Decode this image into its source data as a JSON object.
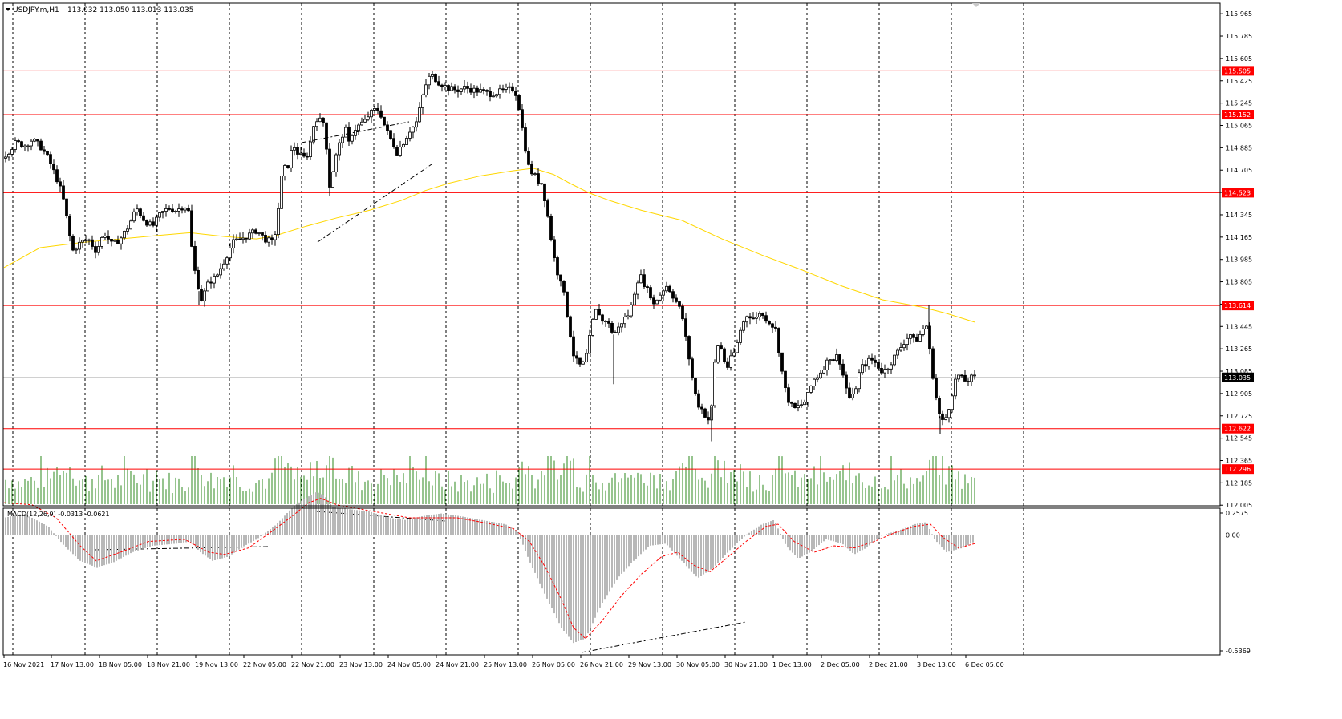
{
  "header": {
    "symbol": "USDJPY.m,H1",
    "ohlc": "113.032 113.050 113.013 113.035"
  },
  "colors": {
    "background": "#ffffff",
    "grid": "#000000",
    "candle": "#000000",
    "level_line": "#ff0000",
    "level_label_bg": "#ff0000",
    "current_price_line": "#c0c0c0",
    "ma_line": "#ffd700",
    "volume": "#2d8a1e",
    "macd_hist": "#b8b8b8",
    "macd_signal": "#ff0000"
  },
  "main_axis": {
    "ticks": [
      "115.965",
      "115.785",
      "115.605",
      "115.425",
      "115.245",
      "115.065",
      "114.885",
      "114.705",
      "114.525",
      "114.345",
      "114.165",
      "113.985",
      "113.805",
      "113.625",
      "113.445",
      "113.265",
      "113.085",
      "112.905",
      "112.725",
      "112.545",
      "112.365",
      "112.185",
      "112.005"
    ],
    "current_price": "113.035"
  },
  "levels": [
    "115.505",
    "115.152",
    "114.523",
    "113.614",
    "112.622",
    "112.296"
  ],
  "macd": {
    "label": "MACD(12,26,9) -0.0313 -0.0621",
    "ticks": [
      "0.2575",
      "0.00",
      "-0.5369"
    ]
  },
  "time_axis": [
    "16 Nov 2021",
    "17 Nov 13:00",
    "18 Nov 05:00",
    "18 Nov 21:00",
    "19 Nov 13:00",
    "22 Nov 05:00",
    "22 Nov 21:00",
    "23 Nov 13:00",
    "24 Nov 05:00",
    "24 Nov 21:00",
    "25 Nov 13:00",
    "26 Nov 05:00",
    "26 Nov 21:00",
    "29 Nov 13:00",
    "30 Nov 05:00",
    "30 Nov 21:00",
    "1 Dec 13:00",
    "2 Dec 05:00",
    "2 Dec 21:00",
    "3 Dec 13:00",
    "6 Dec 05:00"
  ],
  "chart_data": {
    "type": "candlestick",
    "symbol": "USDJPY.m",
    "timeframe": "H1",
    "y_range": [
      112.0,
      116.05
    ],
    "macd_range": [
      -0.5369,
      0.2575
    ],
    "price_path": [
      [
        0,
        114.78
      ],
      [
        10,
        114.85
      ],
      [
        20,
        114.93
      ],
      [
        30,
        114.9
      ],
      [
        40,
        114.95
      ],
      [
        50,
        114.9
      ],
      [
        60,
        114.8
      ],
      [
        70,
        114.65
      ],
      [
        78,
        114.5
      ],
      [
        85,
        114.25
      ],
      [
        90,
        114.05
      ],
      [
        100,
        114.12
      ],
      [
        110,
        114.15
      ],
      [
        120,
        114.05
      ],
      [
        130,
        114.2
      ],
      [
        140,
        114.1
      ],
      [
        150,
        114.15
      ],
      [
        160,
        114.25
      ],
      [
        170,
        114.4
      ],
      [
        180,
        114.3
      ],
      [
        190,
        114.25
      ],
      [
        200,
        114.35
      ],
      [
        210,
        114.4
      ],
      [
        220,
        114.38
      ],
      [
        230,
        114.42
      ],
      [
        237,
        114.35
      ],
      [
        240,
        113.95
      ],
      [
        245,
        113.85
      ],
      [
        250,
        113.65
      ],
      [
        255,
        113.72
      ],
      [
        260,
        113.8
      ],
      [
        270,
        113.85
      ],
      [
        280,
        113.98
      ],
      [
        290,
        114.12
      ],
      [
        300,
        114.15
      ],
      [
        310,
        114.18
      ],
      [
        320,
        114.22
      ],
      [
        330,
        114.15
      ],
      [
        340,
        114.12
      ],
      [
        345,
        114.25
      ],
      [
        350,
        114.62
      ],
      [
        355,
        114.72
      ],
      [
        360,
        114.75
      ],
      [
        365,
        114.92
      ],
      [
        370,
        114.85
      ],
      [
        375,
        114.82
      ],
      [
        380,
        114.8
      ],
      [
        385,
        114.85
      ],
      [
        390,
        115.05
      ],
      [
        395,
        115.12
      ],
      [
        400,
        115.1
      ],
      [
        405,
        115.08
      ],
      [
        408,
        114.8
      ],
      [
        410,
        114.55
      ],
      [
        415,
        114.7
      ],
      [
        420,
        114.85
      ],
      [
        425,
        114.95
      ],
      [
        430,
        115.05
      ],
      [
        435,
        114.92
      ],
      [
        440,
        115.02
      ],
      [
        445,
        115.05
      ],
      [
        450,
        115.08
      ],
      [
        455,
        115.1
      ],
      [
        460,
        115.15
      ],
      [
        465,
        115.18
      ],
      [
        470,
        115.2
      ],
      [
        475,
        115.15
      ],
      [
        480,
        115.05
      ],
      [
        485,
        114.98
      ],
      [
        490,
        114.92
      ],
      [
        495,
        114.85
      ],
      [
        500,
        114.9
      ],
      [
        505,
        114.95
      ],
      [
        510,
        115.02
      ],
      [
        515,
        115.05
      ],
      [
        520,
        115.1
      ],
      [
        525,
        115.25
      ],
      [
        530,
        115.38
      ],
      [
        535,
        115.45
      ],
      [
        540,
        115.47
      ],
      [
        545,
        115.42
      ],
      [
        550,
        115.4
      ],
      [
        555,
        115.38
      ],
      [
        560,
        115.36
      ],
      [
        570,
        115.35
      ],
      [
        580,
        115.37
      ],
      [
        590,
        115.35
      ],
      [
        600,
        115.34
      ],
      [
        610,
        115.32
      ],
      [
        620,
        115.33
      ],
      [
        630,
        115.35
      ],
      [
        640,
        115.36
      ],
      [
        645,
        115.3
      ],
      [
        650,
        115.08
      ],
      [
        655,
        114.88
      ],
      [
        660,
        114.7
      ],
      [
        665,
        114.68
      ],
      [
        670,
        114.62
      ],
      [
        675,
        114.6
      ],
      [
        680,
        114.45
      ],
      [
        685,
        114.25
      ],
      [
        690,
        114.02
      ],
      [
        695,
        113.88
      ],
      [
        700,
        113.82
      ],
      [
        705,
        113.62
      ],
      [
        710,
        113.42
      ],
      [
        715,
        113.22
      ],
      [
        720,
        113.15
      ],
      [
        725,
        113.12
      ],
      [
        730,
        113.18
      ],
      [
        735,
        113.35
      ],
      [
        740,
        113.52
      ],
      [
        745,
        113.6
      ],
      [
        750,
        113.48
      ],
      [
        755,
        113.5
      ],
      [
        760,
        113.45
      ],
      [
        765,
        113.38
      ],
      [
        770,
        113.42
      ],
      [
        775,
        113.48
      ],
      [
        780,
        113.52
      ],
      [
        785,
        113.55
      ],
      [
        790,
        113.7
      ],
      [
        795,
        113.82
      ],
      [
        800,
        113.85
      ],
      [
        805,
        113.75
      ],
      [
        810,
        113.72
      ],
      [
        815,
        113.62
      ],
      [
        820,
        113.68
      ],
      [
        825,
        113.72
      ],
      [
        830,
        113.78
      ],
      [
        835,
        113.74
      ],
      [
        840,
        113.68
      ],
      [
        845,
        113.62
      ],
      [
        850,
        113.55
      ],
      [
        855,
        113.35
      ],
      [
        860,
        113.15
      ],
      [
        865,
        112.95
      ],
      [
        870,
        112.82
      ],
      [
        875,
        112.78
      ],
      [
        880,
        112.72
      ],
      [
        885,
        112.68
      ],
      [
        888,
        112.85
      ],
      [
        892,
        113.25
      ],
      [
        897,
        113.32
      ],
      [
        902,
        113.18
      ],
      [
        907,
        113.12
      ],
      [
        912,
        113.2
      ],
      [
        917,
        113.25
      ],
      [
        922,
        113.4
      ],
      [
        927,
        113.48
      ],
      [
        932,
        113.55
      ],
      [
        937,
        113.52
      ],
      [
        942,
        113.5
      ],
      [
        947,
        113.56
      ],
      [
        952,
        113.52
      ],
      [
        957,
        113.5
      ],
      [
        962,
        113.46
      ],
      [
        967,
        113.42
      ],
      [
        970,
        113.3
      ],
      [
        975,
        113.08
      ],
      [
        980,
        112.9
      ],
      [
        985,
        112.82
      ],
      [
        990,
        112.78
      ],
      [
        995,
        112.8
      ],
      [
        1000,
        112.82
      ],
      [
        1005,
        112.85
      ],
      [
        1010,
        112.95
      ],
      [
        1015,
        113.02
      ],
      [
        1020,
        113.05
      ],
      [
        1025,
        113.1
      ],
      [
        1030,
        113.15
      ],
      [
        1035,
        113.2
      ],
      [
        1040,
        113.18
      ],
      [
        1045,
        113.22
      ],
      [
        1050,
        113.08
      ],
      [
        1055,
        112.95
      ],
      [
        1060,
        112.85
      ],
      [
        1065,
        112.9
      ],
      [
        1070,
        113.05
      ],
      [
        1075,
        113.12
      ],
      [
        1080,
        113.15
      ],
      [
        1085,
        113.18
      ],
      [
        1090,
        113.16
      ],
      [
        1095,
        113.12
      ],
      [
        1100,
        113.08
      ],
      [
        1105,
        113.1
      ],
      [
        1110,
        113.15
      ],
      [
        1115,
        113.2
      ],
      [
        1120,
        113.25
      ],
      [
        1125,
        113.3
      ],
      [
        1130,
        113.35
      ],
      [
        1135,
        113.38
      ],
      [
        1140,
        113.32
      ],
      [
        1145,
        113.35
      ],
      [
        1150,
        113.42
      ],
      [
        1155,
        113.45
      ],
      [
        1160,
        113.2
      ],
      [
        1165,
        112.95
      ],
      [
        1170,
        112.75
      ],
      [
        1175,
        112.68
      ],
      [
        1180,
        112.72
      ],
      [
        1185,
        112.85
      ],
      [
        1190,
        113.0
      ],
      [
        1195,
        113.05
      ],
      [
        1200,
        113.02
      ],
      [
        1205,
        113.0
      ],
      [
        1210,
        113.03
      ],
      [
        1215,
        113.035
      ]
    ],
    "ma_path": [
      [
        5,
        113.92
      ],
      [
        50,
        114.08
      ],
      [
        100,
        114.12
      ],
      [
        150,
        114.15
      ],
      [
        200,
        114.18
      ],
      [
        237,
        114.2
      ],
      [
        280,
        114.17
      ],
      [
        320,
        114.15
      ],
      [
        345,
        114.18
      ],
      [
        380,
        114.25
      ],
      [
        420,
        114.32
      ],
      [
        460,
        114.38
      ],
      [
        500,
        114.46
      ],
      [
        530,
        114.54
      ],
      [
        560,
        114.6
      ],
      [
        600,
        114.66
      ],
      [
        640,
        114.7
      ],
      [
        665,
        114.72
      ],
      [
        690,
        114.67
      ],
      [
        710,
        114.6
      ],
      [
        735,
        114.52
      ],
      [
        760,
        114.46
      ],
      [
        800,
        114.38
      ],
      [
        850,
        114.3
      ],
      [
        900,
        114.15
      ],
      [
        950,
        114.02
      ],
      [
        1000,
        113.9
      ],
      [
        1050,
        113.77
      ],
      [
        1100,
        113.66
      ],
      [
        1150,
        113.6
      ],
      [
        1180,
        113.55
      ],
      [
        1215,
        113.48
      ]
    ],
    "volume_range": [
      0,
      410
    ],
    "macd_hist_path": [
      [
        5,
        0.08
      ],
      [
        30,
        0.1
      ],
      [
        60,
        0.04
      ],
      [
        80,
        -0.05
      ],
      [
        100,
        -0.12
      ],
      [
        120,
        -0.15
      ],
      [
        140,
        -0.13
      ],
      [
        165,
        -0.08
      ],
      [
        190,
        -0.05
      ],
      [
        220,
        -0.04
      ],
      [
        237,
        -0.03
      ],
      [
        250,
        -0.08
      ],
      [
        265,
        -0.12
      ],
      [
        285,
        -0.1
      ],
      [
        305,
        -0.05
      ],
      [
        320,
        -0.02
      ],
      [
        345,
        0.05
      ],
      [
        365,
        0.13
      ],
      [
        380,
        0.17
      ],
      [
        395,
        0.2
      ],
      [
        405,
        0.18
      ],
      [
        415,
        0.13
      ],
      [
        435,
        0.12
      ],
      [
        460,
        0.11
      ],
      [
        485,
        0.08
      ],
      [
        505,
        0.07
      ],
      [
        530,
        0.09
      ],
      [
        550,
        0.1
      ],
      [
        570,
        0.09
      ],
      [
        600,
        0.07
      ],
      [
        630,
        0.05
      ],
      [
        645,
        0.02
      ],
      [
        660,
        -0.12
      ],
      [
        680,
        -0.28
      ],
      [
        700,
        -0.43
      ],
      [
        715,
        -0.5
      ],
      [
        730,
        -0.48
      ],
      [
        750,
        -0.32
      ],
      [
        770,
        -0.2
      ],
      [
        790,
        -0.12
      ],
      [
        810,
        -0.05
      ],
      [
        830,
        -0.04
      ],
      [
        850,
        -0.12
      ],
      [
        870,
        -0.2
      ],
      [
        890,
        -0.15
      ],
      [
        910,
        -0.07
      ],
      [
        930,
        0.0
      ],
      [
        950,
        0.05
      ],
      [
        965,
        0.07
      ],
      [
        980,
        -0.05
      ],
      [
        995,
        -0.11
      ],
      [
        1010,
        -0.08
      ],
      [
        1030,
        -0.02
      ],
      [
        1050,
        -0.04
      ],
      [
        1065,
        -0.09
      ],
      [
        1080,
        -0.06
      ],
      [
        1100,
        0.0
      ],
      [
        1120,
        0.02
      ],
      [
        1140,
        0.05
      ],
      [
        1155,
        0.06
      ],
      [
        1165,
        -0.02
      ],
      [
        1180,
        -0.08
      ],
      [
        1200,
        -0.06
      ],
      [
        1215,
        -0.03
      ]
    ],
    "macd_signal_path": [
      [
        5,
        0.15
      ],
      [
        40,
        0.14
      ],
      [
        70,
        0.08
      ],
      [
        100,
        -0.05
      ],
      [
        120,
        -0.12
      ],
      [
        150,
        -0.08
      ],
      [
        185,
        -0.03
      ],
      [
        230,
        -0.02
      ],
      [
        260,
        -0.08
      ],
      [
        280,
        -0.09
      ],
      [
        310,
        -0.06
      ],
      [
        340,
        0.02
      ],
      [
        365,
        0.09
      ],
      [
        385,
        0.15
      ],
      [
        400,
        0.17
      ],
      [
        420,
        0.14
      ],
      [
        450,
        0.12
      ],
      [
        480,
        0.1
      ],
      [
        510,
        0.08
      ],
      [
        540,
        0.08
      ],
      [
        570,
        0.08
      ],
      [
        600,
        0.06
      ],
      [
        640,
        0.03
      ],
      [
        660,
        -0.03
      ],
      [
        680,
        -0.15
      ],
      [
        700,
        -0.3
      ],
      [
        715,
        -0.43
      ],
      [
        730,
        -0.48
      ],
      [
        750,
        -0.4
      ],
      [
        775,
        -0.28
      ],
      [
        800,
        -0.18
      ],
      [
        825,
        -0.1
      ],
      [
        845,
        -0.08
      ],
      [
        865,
        -0.14
      ],
      [
        885,
        -0.17
      ],
      [
        905,
        -0.11
      ],
      [
        930,
        -0.03
      ],
      [
        955,
        0.04
      ],
      [
        970,
        0.05
      ],
      [
        990,
        -0.03
      ],
      [
        1015,
        -0.08
      ],
      [
        1040,
        -0.05
      ],
      [
        1065,
        -0.06
      ],
      [
        1090,
        -0.03
      ],
      [
        1115,
        0.01
      ],
      [
        1140,
        0.04
      ],
      [
        1160,
        0.05
      ],
      [
        1175,
        -0.01
      ],
      [
        1195,
        -0.06
      ],
      [
        1215,
        -0.04
      ]
    ]
  }
}
